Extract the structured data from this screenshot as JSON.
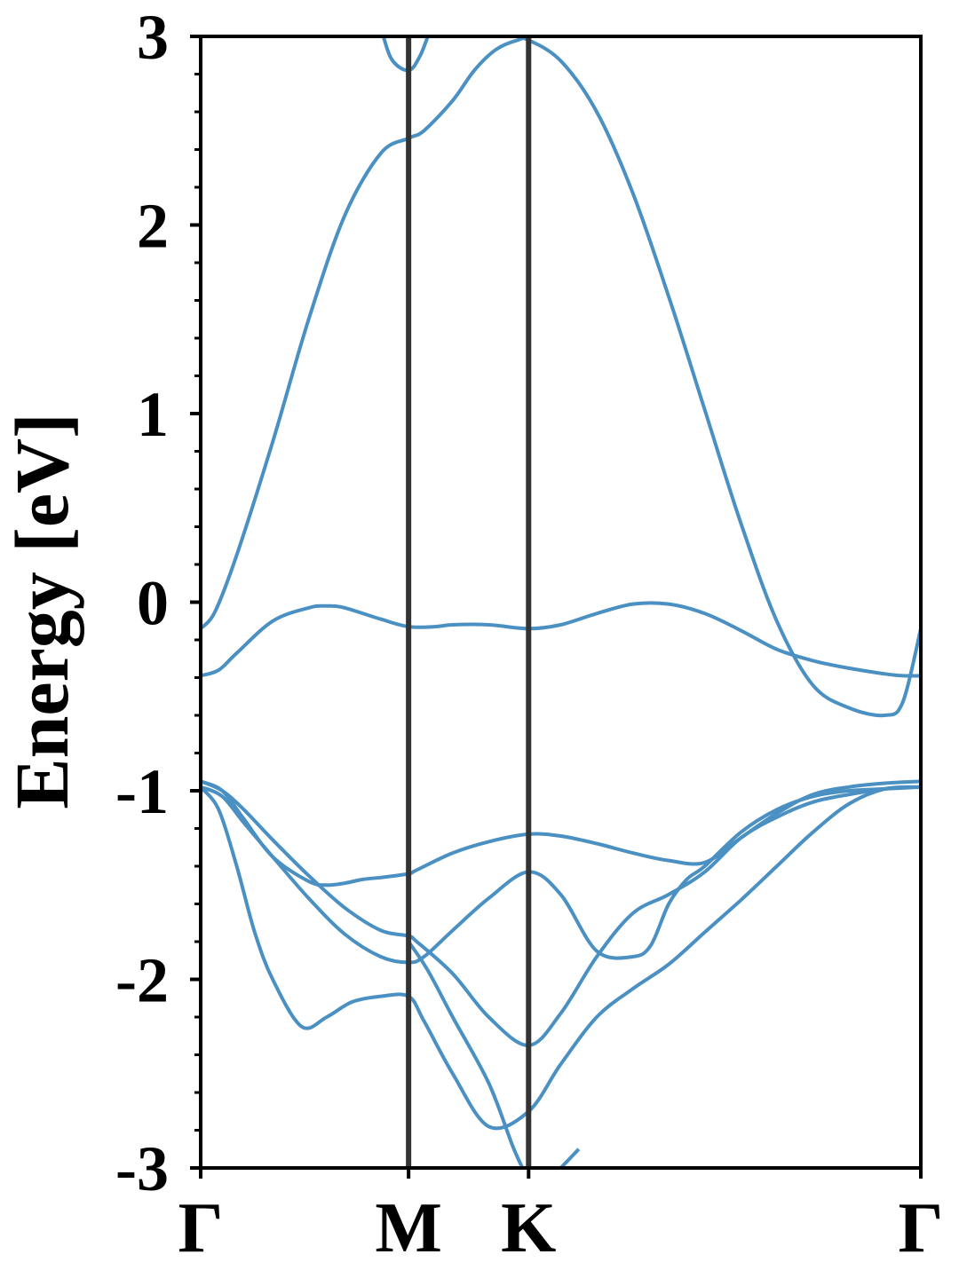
{
  "chart_data": {
    "type": "line",
    "title": "",
    "xlabel": "",
    "ylabel": "Energy [eV]",
    "ylim": [
      -3,
      3
    ],
    "y_ticks": [
      "3",
      "2",
      "1",
      "0",
      "-1",
      "-2",
      "-3"
    ],
    "y_tick_values": [
      3,
      2,
      1,
      0,
      -1,
      -2,
      -3
    ],
    "x_ticks": [
      "Γ",
      "M",
      "K",
      "Γ"
    ],
    "x_tick_values": [
      0,
      0.5774,
      0.9107,
      2.0
    ],
    "xlim": [
      0,
      2.0
    ],
    "k_path_separators": [
      0.5774,
      0.9107
    ],
    "grid": false,
    "legend": "none",
    "colors": {
      "band": "#4a90c2",
      "separator": "#333333",
      "frame": "#000000"
    },
    "series": [
      {
        "x": [
          0,
          0.04,
          0.1,
          0.2,
          0.3,
          0.4,
          0.5,
          0.5774,
          0.62,
          0.7,
          0.76,
          0.82,
          0.88,
          0.9107,
          1.0,
          1.1,
          1.2,
          1.3,
          1.4,
          1.5,
          1.6,
          1.7,
          1.8,
          1.9,
          1.95,
          2.0
        ],
        "y": [
          -0.14,
          -0.05,
          0.25,
          0.85,
          1.5,
          2.05,
          2.38,
          2.46,
          2.5,
          2.66,
          2.82,
          2.93,
          2.98,
          2.98,
          2.87,
          2.6,
          2.17,
          1.62,
          1.02,
          0.42,
          -0.1,
          -0.44,
          -0.56,
          -0.6,
          -0.53,
          -0.14
        ]
      },
      {
        "x": [
          0,
          0.05,
          0.1,
          0.2,
          0.3,
          0.35,
          0.4,
          0.5,
          0.5774,
          0.65,
          0.7,
          0.8,
          0.9107,
          1.0,
          1.1,
          1.2,
          1.3,
          1.4,
          1.5,
          1.6,
          1.7,
          1.8,
          1.9,
          1.95,
          2.0
        ],
        "y": [
          -0.39,
          -0.36,
          -0.27,
          -0.1,
          -0.03,
          -0.02,
          -0.03,
          -0.09,
          -0.13,
          -0.13,
          -0.12,
          -0.12,
          -0.14,
          -0.12,
          -0.06,
          -0.01,
          -0.01,
          -0.06,
          -0.15,
          -0.25,
          -0.31,
          -0.35,
          -0.38,
          -0.39,
          -0.39
        ]
      },
      {
        "x": [
          0.5,
          0.53,
          0.5774,
          0.61,
          0.64
        ],
        "y": [
          3.05,
          2.88,
          2.82,
          2.9,
          3.05
        ]
      },
      {
        "x": [
          0,
          0.06,
          0.12,
          0.2,
          0.3,
          0.35,
          0.4,
          0.45,
          0.5,
          0.5774,
          0.6,
          0.7,
          0.8,
          0.9107,
          1.0,
          1.1,
          1.2,
          1.3,
          1.4,
          1.5,
          1.6,
          1.7,
          1.8,
          1.9,
          2.0
        ],
        "y": [
          -0.95,
          -1.0,
          -1.15,
          -1.35,
          -1.48,
          -1.5,
          -1.49,
          -1.47,
          -1.46,
          -1.44,
          -1.42,
          -1.33,
          -1.27,
          -1.23,
          -1.24,
          -1.28,
          -1.33,
          -1.37,
          -1.38,
          -1.25,
          -1.12,
          -1.02,
          -0.98,
          -0.96,
          -0.95
        ]
      },
      {
        "x": [
          0,
          0.06,
          0.12,
          0.2,
          0.3,
          0.4,
          0.5,
          0.5774,
          0.6,
          0.7,
          0.8,
          0.9107,
          1.0,
          1.1,
          1.2,
          1.3,
          1.4,
          1.5,
          1.6,
          1.7,
          1.8,
          1.9,
          2.0
        ],
        "y": [
          -0.95,
          -1.0,
          -1.1,
          -1.26,
          -1.45,
          -1.62,
          -1.74,
          -1.77,
          -1.8,
          -1.97,
          -2.2,
          -2.35,
          -2.18,
          -1.88,
          -1.65,
          -1.55,
          -1.43,
          -1.25,
          -1.14,
          -1.06,
          -1.02,
          -0.99,
          -0.98
        ]
      },
      {
        "x": [
          0,
          0.06,
          0.12,
          0.2,
          0.3,
          0.4,
          0.5,
          0.5774,
          0.62,
          0.7,
          0.8,
          0.9107,
          1.0,
          1.1,
          1.2,
          1.25,
          1.3,
          1.35,
          1.4,
          1.5,
          1.6,
          1.7,
          1.8,
          1.9,
          2.0
        ],
        "y": [
          -0.98,
          -1.03,
          -1.17,
          -1.35,
          -1.57,
          -1.76,
          -1.88,
          -1.91,
          -1.88,
          -1.74,
          -1.57,
          -1.43,
          -1.55,
          -1.85,
          -1.88,
          -1.82,
          -1.6,
          -1.47,
          -1.4,
          -1.22,
          -1.1,
          -1.03,
          -1.0,
          -0.99,
          -0.98
        ]
      },
      {
        "x": [
          0,
          0.05,
          0.1,
          0.15,
          0.2,
          0.28,
          0.35,
          0.42,
          0.5,
          0.5774,
          0.62,
          0.7,
          0.8,
          0.9107,
          1.0,
          1.1,
          1.2,
          1.3,
          1.4,
          1.5,
          1.6,
          1.7,
          1.8,
          1.9,
          2.0
        ],
        "y": [
          -0.98,
          -1.1,
          -1.4,
          -1.75,
          -2.0,
          -2.25,
          -2.2,
          -2.12,
          -2.09,
          -2.09,
          -2.22,
          -2.5,
          -2.78,
          -2.7,
          -2.45,
          -2.2,
          -2.05,
          -1.92,
          -1.75,
          -1.58,
          -1.4,
          -1.22,
          -1.07,
          -0.99,
          -0.98
        ]
      },
      {
        "x": [
          0.5774,
          0.63,
          0.7,
          0.8,
          0.87,
          0.9107,
          0.95,
          1.0,
          1.05
        ],
        "y": [
          -1.8,
          -1.95,
          -2.2,
          -2.55,
          -2.9,
          -3.05,
          -3.1,
          -3.0,
          -2.9
        ]
      }
    ]
  }
}
